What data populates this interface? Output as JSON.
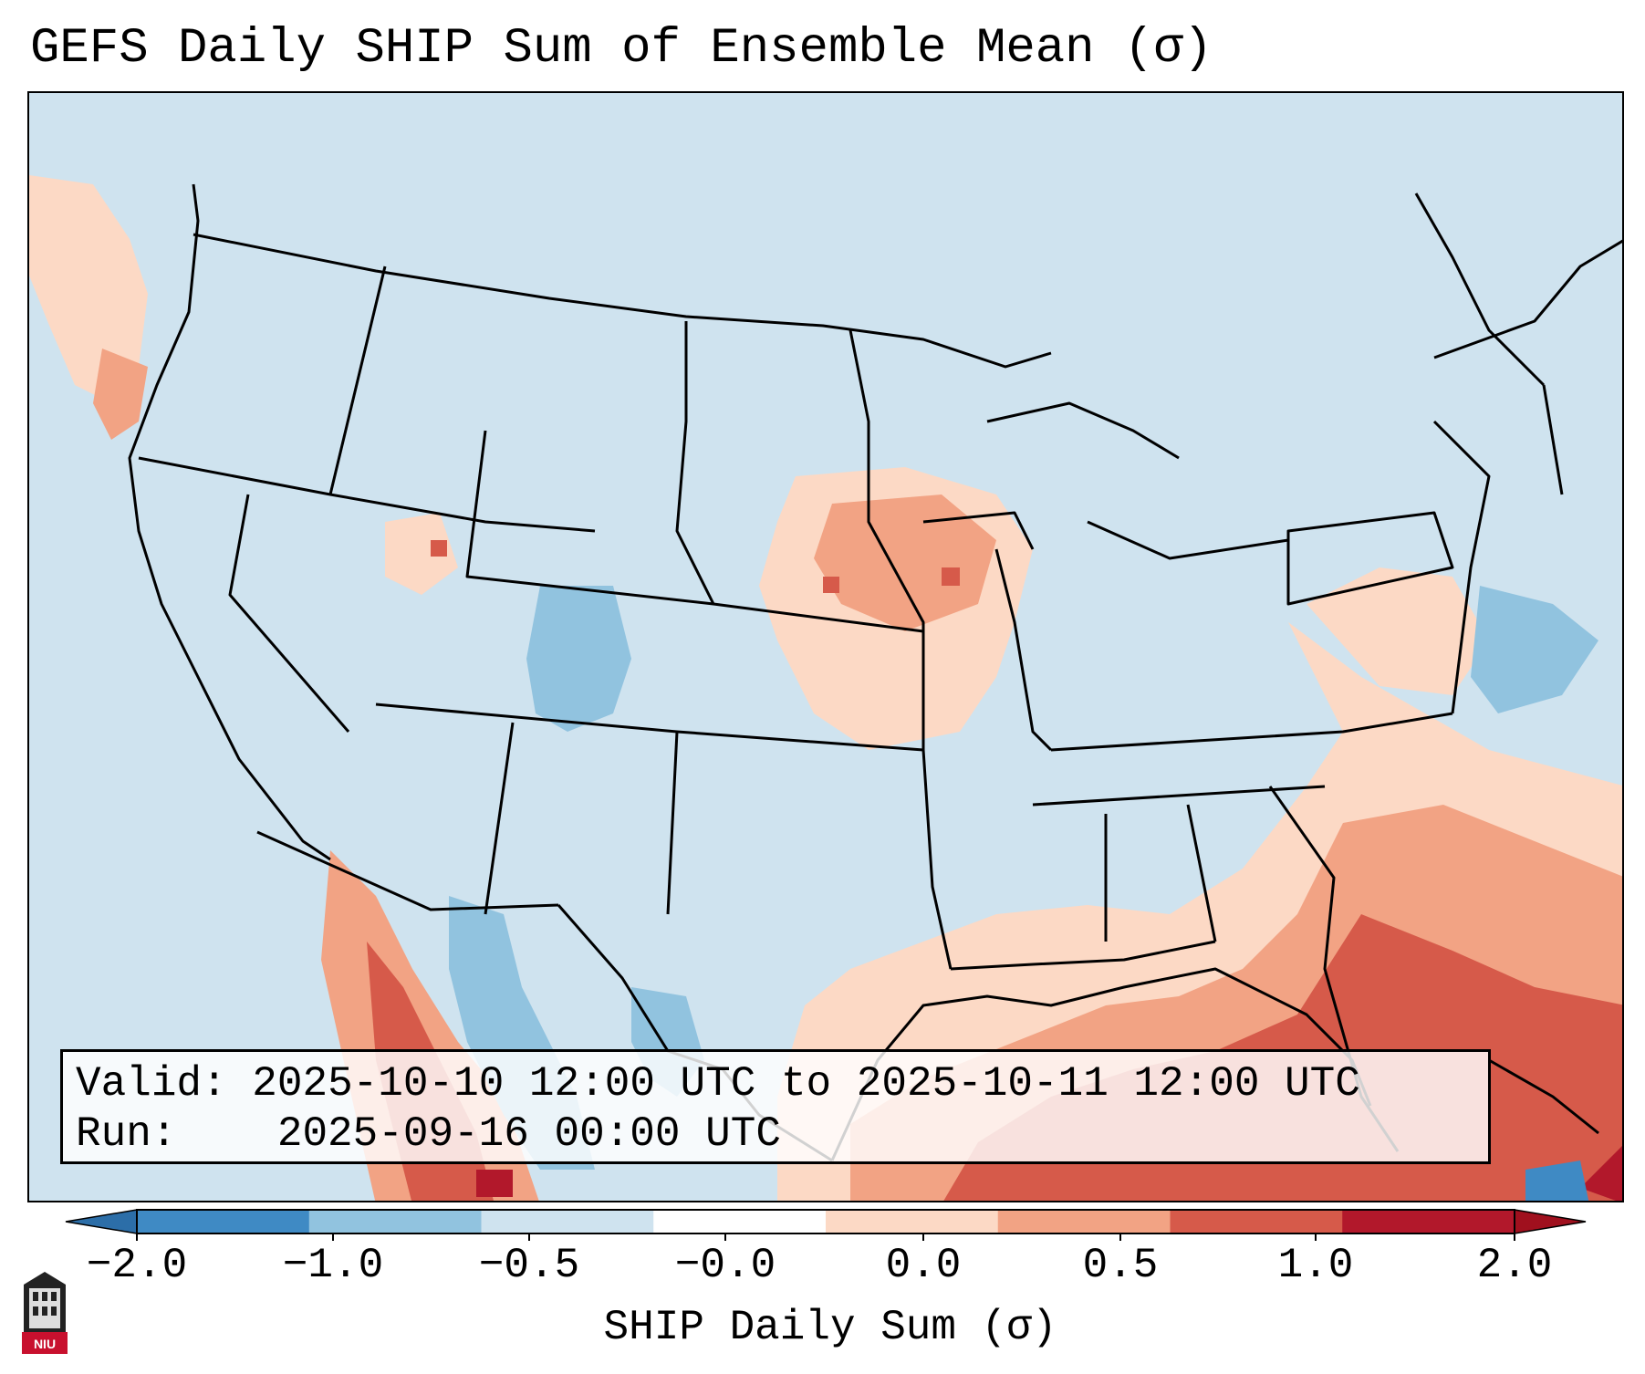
{
  "title": "GEFS Daily SHIP Sum of Ensemble Mean (σ)",
  "info": {
    "valid_label": "Valid:",
    "valid_value": "2025-10-10 12:00 UTC to 2025-10-11 12:00 UTC",
    "run_label": "Run:",
    "run_value": "2025-09-16 00:00 UTC"
  },
  "colorbar": {
    "label": "SHIP Daily Sum (σ)",
    "ticks": [
      "−2.0",
      "−1.0",
      "−0.5",
      "−0.0",
      "0.0",
      "0.5",
      "1.0",
      "2.0"
    ],
    "colors": [
      "#3f8ac4",
      "#91c3df",
      "#cfe3ef",
      "#ffffff",
      "#fcd9c5",
      "#f2a384",
      "#d65a4a",
      "#b2182b"
    ],
    "extend_low_color": "#2c6ea8",
    "extend_high_color": "#a0101e"
  },
  "logo": {
    "text": "NIU"
  },
  "colors": {
    "background": "#cfe3ef",
    "border": "#000000"
  }
}
